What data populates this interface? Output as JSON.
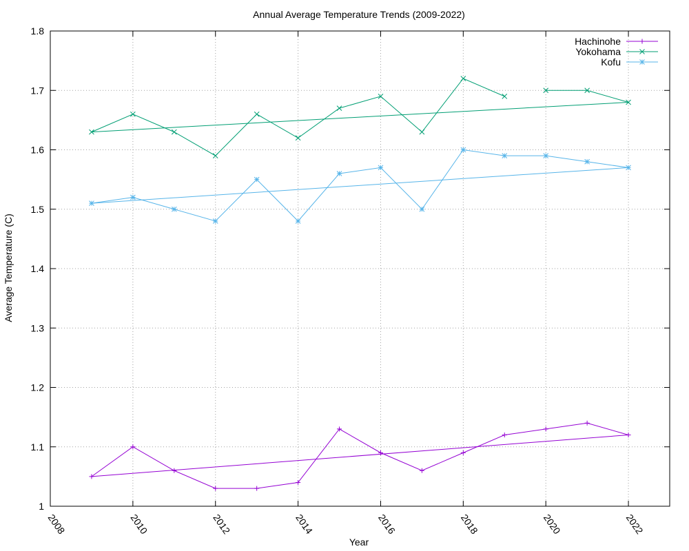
{
  "chart_data": {
    "type": "line",
    "title": "Annual Average Temperature Trends (2009-2022)",
    "xlabel": "Year",
    "ylabel": "Average Temperature (C)",
    "xlim": [
      2008,
      2023
    ],
    "ylim": [
      1.0,
      1.8
    ],
    "x_ticks": [
      2008,
      2010,
      2012,
      2014,
      2016,
      2018,
      2020,
      2022
    ],
    "y_ticks": [
      1.0,
      1.1,
      1.2,
      1.3,
      1.4,
      1.5,
      1.6,
      1.7,
      1.8
    ],
    "grid": true,
    "legend_position": "top-right",
    "series": [
      {
        "name": "Hachinohe",
        "color": "#9400d3",
        "marker": "plus",
        "points": [
          [
            2009,
            1.05
          ],
          [
            2010,
            1.1
          ],
          [
            2011,
            1.06
          ],
          [
            2012,
            1.03
          ],
          [
            2013,
            1.03
          ],
          [
            2014,
            1.04
          ],
          [
            2015,
            1.13
          ],
          [
            2016,
            1.09
          ],
          [
            2017,
            1.06
          ],
          [
            2018,
            1.09
          ],
          [
            2019,
            1.12
          ],
          [
            2020,
            1.13
          ],
          [
            2021,
            1.14
          ],
          [
            2022,
            1.12
          ]
        ],
        "trend": [
          [
            2009,
            1.05
          ],
          [
            2022,
            1.12
          ]
        ]
      },
      {
        "name": "Yokohama",
        "color": "#009e73",
        "marker": "cross",
        "points": [
          [
            2009,
            1.63
          ],
          [
            2010,
            1.66
          ],
          [
            2011,
            1.63
          ],
          [
            2012,
            1.59
          ],
          [
            2013,
            1.66
          ],
          [
            2014,
            1.62
          ],
          [
            2015,
            1.67
          ],
          [
            2016,
            1.69
          ],
          [
            2017,
            1.63
          ],
          [
            2018,
            1.72
          ],
          [
            2019,
            1.69
          ],
          [
            2020,
            1.7
          ],
          [
            2021,
            1.7
          ],
          [
            2022,
            1.68
          ]
        ],
        "line_segments": [
          [
            2009,
            2010,
            2011,
            2012,
            2013,
            2014,
            2015,
            2016,
            2017,
            2018,
            2019
          ],
          [
            2020,
            2021,
            2022
          ]
        ],
        "trend": [
          [
            2009,
            1.63
          ],
          [
            2022,
            1.68
          ]
        ]
      },
      {
        "name": "Kofu",
        "color": "#56b4e9",
        "marker": "star",
        "points": [
          [
            2009,
            1.51
          ],
          [
            2010,
            1.52
          ],
          [
            2011,
            1.5
          ],
          [
            2012,
            1.48
          ],
          [
            2013,
            1.55
          ],
          [
            2014,
            1.48
          ],
          [
            2015,
            1.56
          ],
          [
            2016,
            1.57
          ],
          [
            2017,
            1.5
          ],
          [
            2018,
            1.6
          ],
          [
            2019,
            1.59
          ],
          [
            2020,
            1.59
          ],
          [
            2021,
            1.58
          ],
          [
            2022,
            1.57
          ]
        ],
        "trend": [
          [
            2009,
            1.51
          ],
          [
            2022,
            1.57
          ]
        ]
      }
    ]
  }
}
